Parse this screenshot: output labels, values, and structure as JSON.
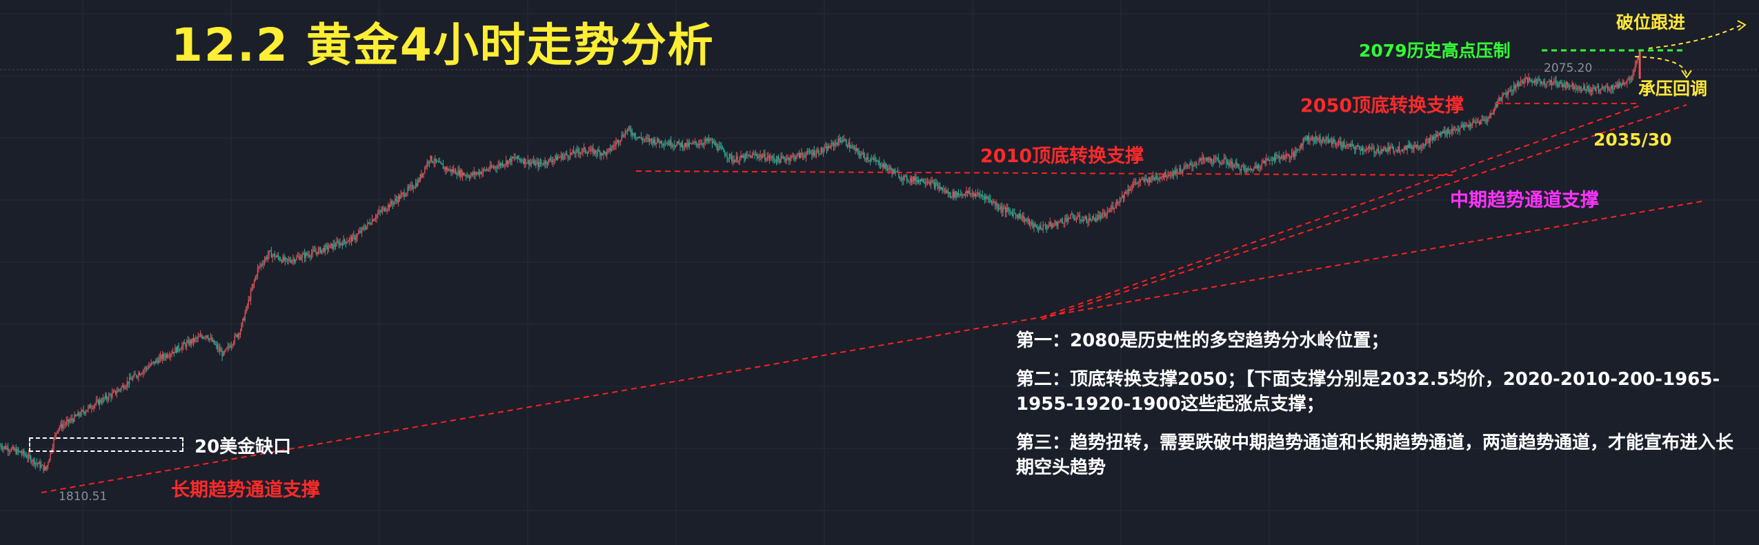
{
  "title": "12.2 黄金4小时走势分析",
  "annotations": {
    "resistance_2079": "2079历史高点压制",
    "break_follow": "破位跟进",
    "pullback": "承压回调",
    "support_2050": "2050顶底转换支撑",
    "target_2035": "2035/30",
    "support_2010": "2010顶底转换支撑",
    "mid_channel": "中期趋势通道支撑",
    "long_channel": "长期趋势通道支撑",
    "gap": "20美金缺口"
  },
  "price_labels": {
    "high": "2075.20",
    "low": "1810.51"
  },
  "analysis": {
    "point1": "第一：2080是历史性的多空趋势分水岭位置；",
    "point2": "第二：顶底转换支撑2050；【下面支撑分别是2032.5均价，2020-2010-200-1965-1955-1920-1900这些起涨点支撑；",
    "point3": "第三：趋势扭转，需要跌破中期趋势通道和长期趋势通道，两道趋势通道，才能宣布进入长期空头趋势"
  },
  "colors": {
    "background": "#1b1f2a",
    "up_candle": "#e5545a",
    "down_candle": "#2bb39a",
    "trendline": "#ff2020",
    "title": "#ffee33"
  },
  "chart_data": {
    "type": "candlestick",
    "symbol": "XAUUSD",
    "timeframe": "4H",
    "ylim": [
      1800,
      2085
    ],
    "key_levels": [
      {
        "name": "2079历史高点压制",
        "price": 2079
      },
      {
        "name": "2050顶底转换支撑",
        "price": 2050
      },
      {
        "name": "2010顶底转换支撑",
        "price": 2010
      },
      {
        "name": "2035/30",
        "price": 2035
      }
    ],
    "path": [
      [
        0,
        1827
      ],
      [
        20,
        1822
      ],
      [
        40,
        1812
      ],
      [
        50,
        1838
      ],
      [
        60,
        1842
      ],
      [
        80,
        1852
      ],
      [
        100,
        1860
      ],
      [
        120,
        1872
      ],
      [
        140,
        1882
      ],
      [
        160,
        1890
      ],
      [
        180,
        1897
      ],
      [
        195,
        1884
      ],
      [
        210,
        1900
      ],
      [
        225,
        1938
      ],
      [
        235,
        1948
      ],
      [
        250,
        1943
      ],
      [
        280,
        1950
      ],
      [
        310,
        1958
      ],
      [
        330,
        1973
      ],
      [
        350,
        1984
      ],
      [
        365,
        1993
      ],
      [
        375,
        2008
      ],
      [
        390,
        2001
      ],
      [
        410,
        1997
      ],
      [
        430,
        2002
      ],
      [
        450,
        2008
      ],
      [
        470,
        2004
      ],
      [
        490,
        2009
      ],
      [
        510,
        2013
      ],
      [
        530,
        2011
      ],
      [
        548,
        2026
      ],
      [
        560,
        2020
      ],
      [
        580,
        2018
      ],
      [
        600,
        2016
      ],
      [
        620,
        2019
      ],
      [
        640,
        2007
      ],
      [
        660,
        2010
      ],
      [
        680,
        2007
      ],
      [
        700,
        2010
      ],
      [
        720,
        2013
      ],
      [
        735,
        2020
      ],
      [
        750,
        2011
      ],
      [
        770,
        2004
      ],
      [
        790,
        1995
      ],
      [
        810,
        1994
      ],
      [
        830,
        1985
      ],
      [
        845,
        1986
      ],
      [
        860,
        1984
      ],
      [
        875,
        1976
      ],
      [
        890,
        1972
      ],
      [
        905,
        1964
      ],
      [
        920,
        1966
      ],
      [
        935,
        1971
      ],
      [
        950,
        1969
      ],
      [
        965,
        1972
      ],
      [
        980,
        1984
      ],
      [
        990,
        1992
      ],
      [
        1010,
        1996
      ],
      [
        1030,
        2000
      ],
      [
        1050,
        2007
      ],
      [
        1070,
        2006
      ],
      [
        1090,
        2000
      ],
      [
        1110,
        2008
      ],
      [
        1130,
        2010
      ],
      [
        1140,
        2021
      ],
      [
        1160,
        2019
      ],
      [
        1180,
        2015
      ],
      [
        1200,
        2013
      ],
      [
        1220,
        2014
      ],
      [
        1240,
        2016
      ],
      [
        1260,
        2024
      ],
      [
        1280,
        2028
      ],
      [
        1300,
        2033
      ],
      [
        1310,
        2046
      ],
      [
        1330,
        2057
      ],
      [
        1350,
        2056
      ],
      [
        1370,
        2054
      ],
      [
        1390,
        2051
      ],
      [
        1410,
        2053
      ],
      [
        1425,
        2058
      ],
      [
        1432,
        2075
      ]
    ],
    "highlight_prices": {
      "high": 2075.2,
      "low": 1810.51
    }
  }
}
